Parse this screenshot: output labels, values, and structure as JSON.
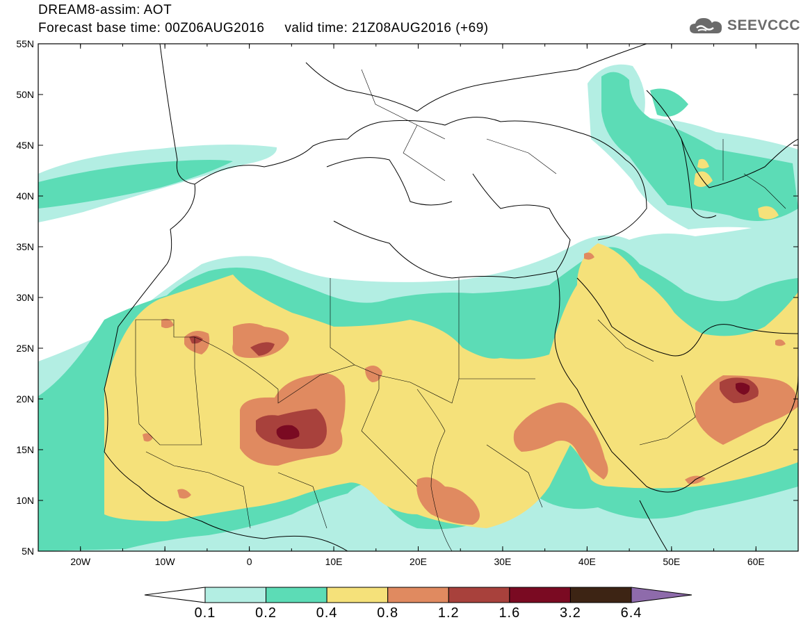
{
  "title": {
    "line1": "DREAM8-assim: AOT",
    "line2": "Forecast base time: 00Z06AUG2016     valid time: 21Z08AUG2016 (+69)"
  },
  "logo": {
    "text": "SEEVCCC",
    "icon": "cloud-icon",
    "color": "#6b6b6b"
  },
  "map": {
    "lon_range": [
      -25,
      65
    ],
    "lat_range": [
      5,
      55
    ],
    "lon_ticks": [
      "20W",
      "10W",
      "0",
      "10E",
      "20E",
      "30E",
      "40E",
      "50E",
      "60E"
    ],
    "lat_ticks": [
      "55N",
      "50N",
      "45N",
      "40N",
      "35N",
      "30N",
      "25N",
      "20N",
      "15N",
      "10N",
      "5N"
    ]
  },
  "colorbar": {
    "levels": [
      "0.1",
      "0.2",
      "0.4",
      "0.8",
      "1.2",
      "1.6",
      "3.2",
      "6.4"
    ],
    "colors": [
      "#ffffff",
      "#b3eee3",
      "#5cdcb6",
      "#f5e17a",
      "#e08a60",
      "#a8413c",
      "#7a0a22",
      "#3d2414",
      "#8e6bab"
    ]
  }
}
